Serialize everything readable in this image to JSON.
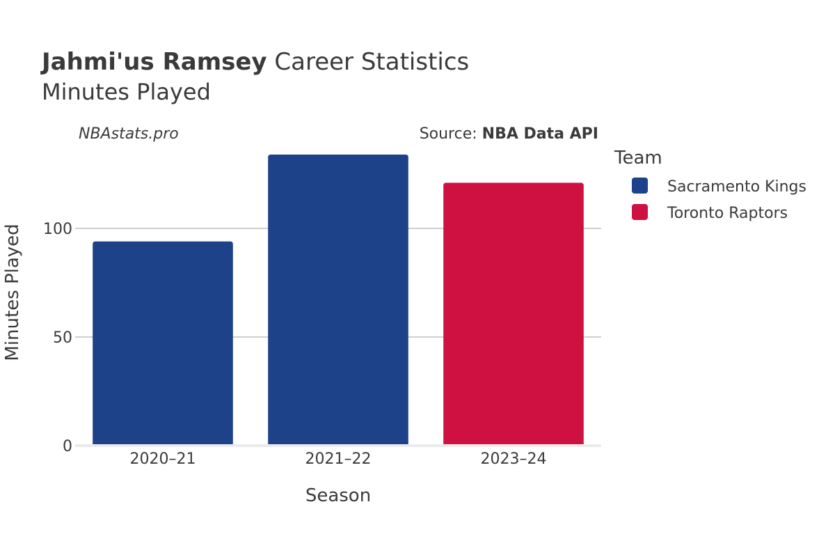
{
  "header": {
    "title_bold": "Jahmi'us Ramsey",
    "title_rest": " Career Statistics",
    "subtitle": "Minutes Played"
  },
  "watermark": "NBAstats.pro",
  "source": {
    "prefix": "Source: ",
    "name": "NBA Data API"
  },
  "legend": {
    "title": "Team",
    "items": [
      {
        "label": "Sacramento Kings",
        "color": "#1d428a"
      },
      {
        "label": "Toronto Raptors",
        "color": "#ce1141"
      }
    ]
  },
  "chart_data": {
    "type": "bar",
    "title": "Jahmi'us Ramsey Career Statistics",
    "subtitle": "Minutes Played",
    "xlabel": "Season",
    "ylabel": "Minutes Played",
    "categories": [
      "2020–21",
      "2021–22",
      "2023–24"
    ],
    "values": [
      94,
      134,
      121
    ],
    "teams": [
      "Sacramento Kings",
      "Sacramento Kings",
      "Toronto Raptors"
    ],
    "colors": [
      "#1d428a",
      "#1d428a",
      "#ce1141"
    ],
    "ylim": [
      0,
      134
    ],
    "yticks": [
      0,
      50,
      100
    ],
    "grid": true,
    "legend_position": "right"
  }
}
